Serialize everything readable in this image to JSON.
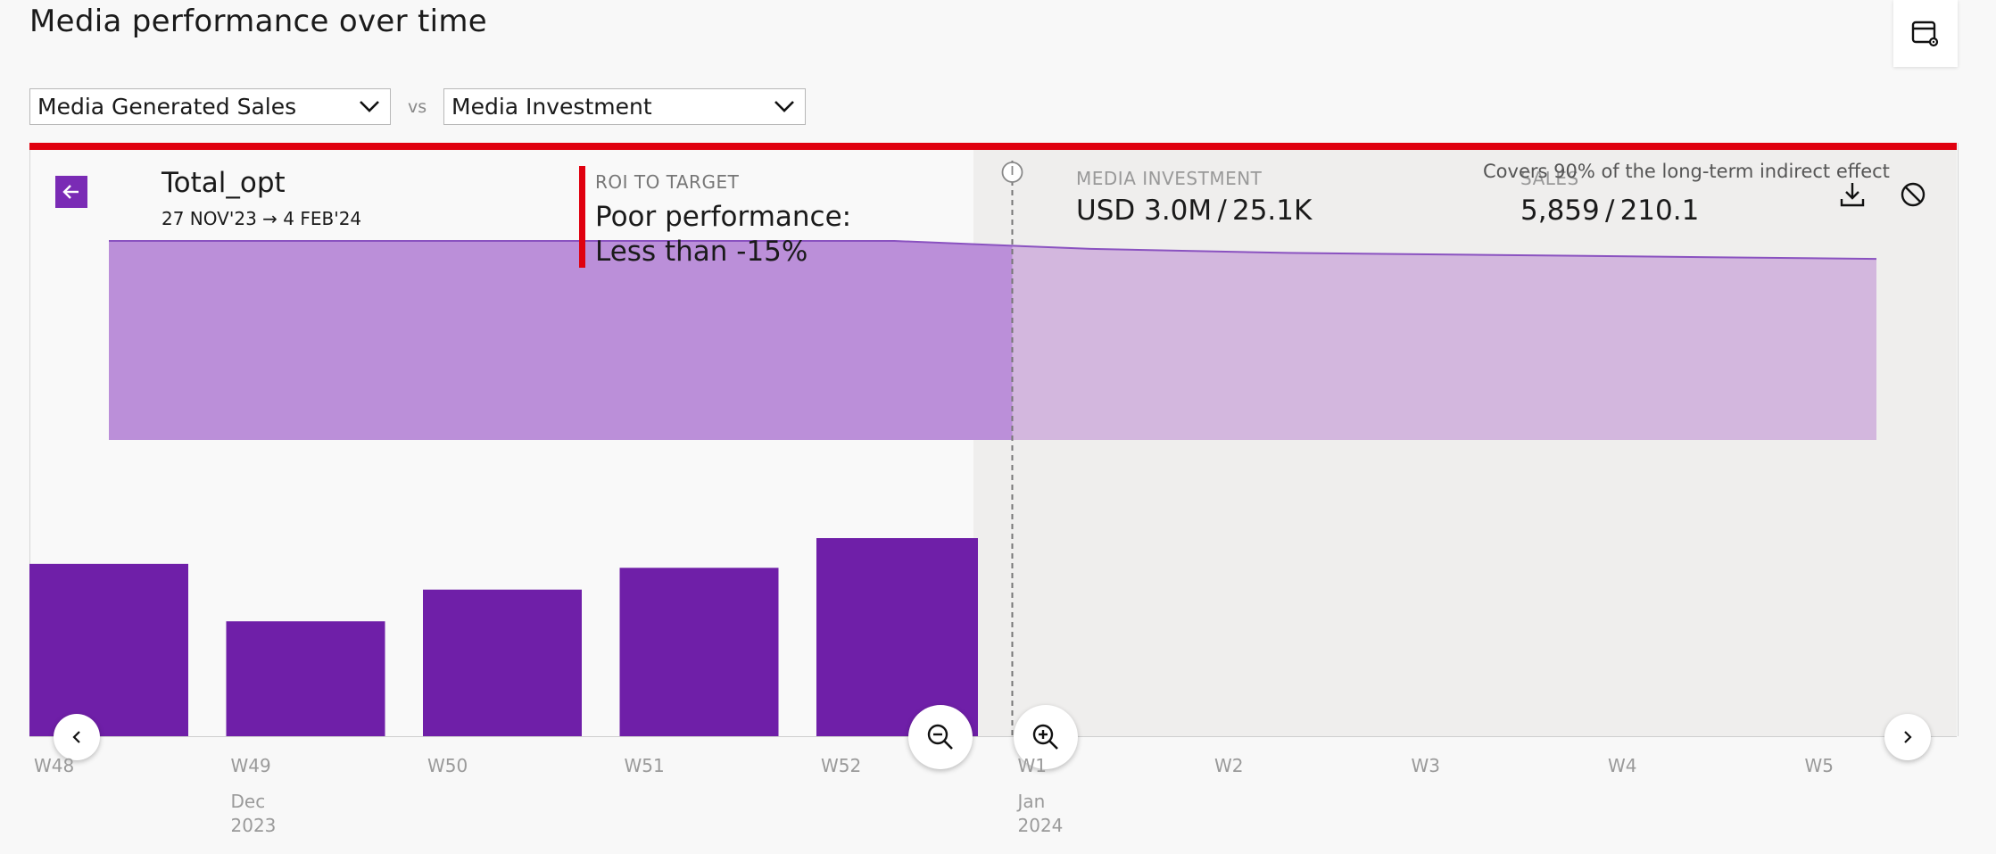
{
  "page": {
    "title": "Media performance over time"
  },
  "toolbar": {
    "settings_icon": "table-settings-icon"
  },
  "selectors": {
    "left": {
      "value": "Media Generated Sales"
    },
    "vs": "vs",
    "right": {
      "value": "Media Investment"
    }
  },
  "colors": {
    "accent": "#6f1fa8",
    "alert": "#e0000f",
    "area_past": "#bb8fd9",
    "area_future": "#d3b7de"
  },
  "detail": {
    "name": "Total_opt",
    "dates": "27 NOV'23 → 4 FEB'24",
    "roi_label": "ROI TO TARGET",
    "roi_text": "Poor performance: Less than -15%",
    "media_investment_label": "MEDIA INVESTMENT",
    "media_investment_value": "USD 3.0M / 25.1K",
    "sales_label": "SALES",
    "sales_value": "5,859 / 210.1",
    "covers_note": "Covers 90% of the long-term indirect effect"
  },
  "chart_data": {
    "type": "bar",
    "categories": [
      "W48",
      "W49",
      "W50",
      "W51",
      "W52",
      "W1",
      "W2",
      "W3",
      "W4",
      "W5"
    ],
    "values": [
      0.87,
      0.58,
      0.74,
      0.85,
      1.0,
      null,
      null,
      null,
      null,
      null
    ],
    "area_values": [
      1.0,
      1.0,
      1.0,
      1.0,
      1.0,
      0.96,
      0.94,
      0.93,
      0.92,
      0.91
    ],
    "month_labels": [
      {
        "at": "W49",
        "month": "Dec",
        "year": "2023"
      },
      {
        "at": "W1",
        "month": "Jan",
        "year": "2024"
      }
    ],
    "grid": false
  }
}
